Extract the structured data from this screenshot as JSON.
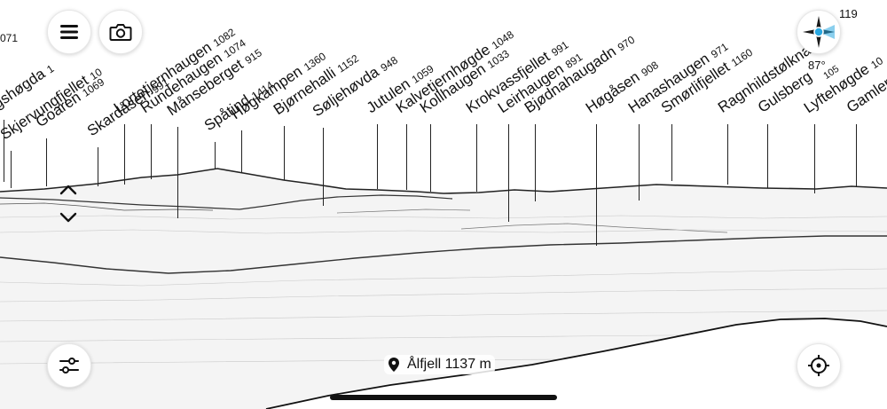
{
  "peaks": [
    {
      "name": "gshøgda",
      "elev": "1"
    },
    {
      "name": "Skjervungfjellet",
      "elev": "10"
    },
    {
      "name": "Goaren",
      "elev": "1069"
    },
    {
      "name": "Skardåsen",
      "elev": "991"
    },
    {
      "name": "Lortetjernhaugen",
      "elev": "1082"
    },
    {
      "name": "Rundehaugen",
      "elev": "1074"
    },
    {
      "name": "Månseberget",
      "elev": "915"
    },
    {
      "name": "Spåtind",
      "elev": "1414"
    },
    {
      "name": "Høgkampen",
      "elev": "1360"
    },
    {
      "name": "Bjørnehalli",
      "elev": "1152"
    },
    {
      "name": "Søljehøvda",
      "elev": "948"
    },
    {
      "name": "Jutulen",
      "elev": "1059"
    },
    {
      "name": "Kalvetjernhøgde",
      "elev": "1048"
    },
    {
      "name": "Kollhaugen",
      "elev": "1033"
    },
    {
      "name": "Krokvassfjellet",
      "elev": "991"
    },
    {
      "name": "Leirhaugen",
      "elev": "891"
    },
    {
      "name": "Bjødnahaugadn",
      "elev": "970"
    },
    {
      "name": "Høgåsen",
      "elev": "908"
    },
    {
      "name": "Hanashaugen",
      "elev": "971"
    },
    {
      "name": "Smørlifjellet",
      "elev": "1160"
    },
    {
      "name": "Ragnhildstølknat",
      "elev": ""
    },
    {
      "name": "Gulsberg",
      "elev": ""
    },
    {
      "name": "Lyftehøgde",
      "elev": "10"
    },
    {
      "name": "Gamlen",
      "elev": ""
    }
  ],
  "corner_fragment": "071",
  "compass": {
    "heading": "119",
    "tilt": "87°",
    "extra": "105"
  },
  "location": {
    "name": "Ålfjell 1137 m"
  },
  "buttons": {
    "menu": "menu-icon",
    "camera": "camera-icon",
    "compass": "compass-icon",
    "settings": "sliders-icon",
    "locate": "crosshair-icon",
    "tilt_up": "chevron-up-icon",
    "tilt_down": "chevron-down-icon"
  },
  "colors": {
    "accent": "#2aa7e0",
    "ink": "#111111",
    "compass_dark": "#1a1a1a"
  }
}
